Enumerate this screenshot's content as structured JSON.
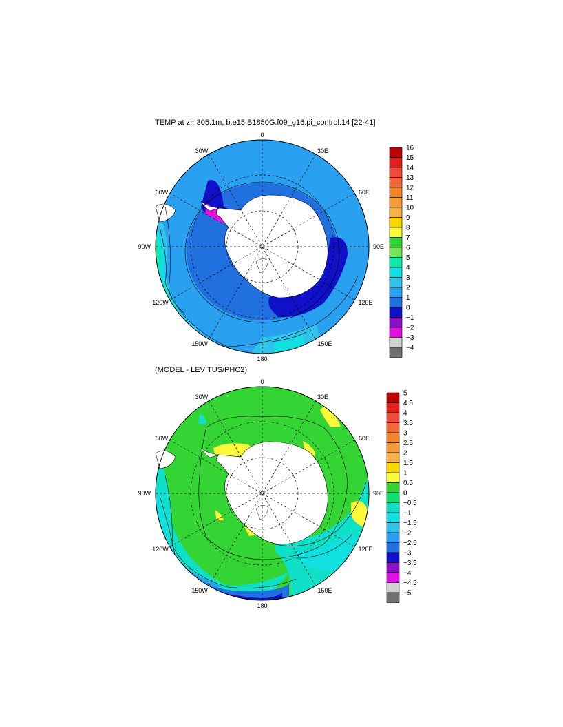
{
  "panel_top": {
    "title": "TEMP at z= 305.1m, b.e15.B1850G.f09_g16.pi_control.14 [22-41]",
    "colorbar": {
      "labels": [
        "16",
        "15",
        "14",
        "13",
        "12",
        "11",
        "10",
        "9",
        "8",
        "7",
        "6",
        "5",
        "4",
        "3",
        "2",
        "1",
        "0",
        "−1",
        "−2",
        "−3",
        "−4"
      ],
      "colors": [
        "#c00000",
        "#e81e1e",
        "#f04a3a",
        "#f06a3a",
        "#f2842a",
        "#f49c38",
        "#f8b24a",
        "#f8d800",
        "#fafa3a",
        "#34d434",
        "#78e45a",
        "#10e8a8",
        "#10e0e0",
        "#30c4ec",
        "#2aa0f0",
        "#2070e0",
        "#1010c8",
        "#8a10c8",
        "#e010e0",
        "#d0d0d0",
        "#707070"
      ]
    }
  },
  "panel_bottom": {
    "title": "(MODEL - LEVITUS/PHC2)",
    "colorbar": {
      "labels": [
        "5",
        "4.5",
        "4",
        "3.5",
        "3",
        "2.5",
        "2",
        "1.5",
        "1",
        "0.5",
        "0",
        "−0.5",
        "−1",
        "−1.5",
        "−2",
        "−2.5",
        "−3",
        "−3.5",
        "−4",
        "−4.5",
        "−5"
      ],
      "colors": [
        "#c00000",
        "#e81e1e",
        "#f04a3a",
        "#f06a3a",
        "#f2842a",
        "#f49c38",
        "#f8b24a",
        "#f8d800",
        "#fafa3a",
        "#34d434",
        "#10e070",
        "#10e0c8",
        "#10e0e0",
        "#30c4ec",
        "#2aa0f0",
        "#2070e0",
        "#1010c8",
        "#8a10c8",
        "#e010e0",
        "#d0d0d0",
        "#707070"
      ]
    }
  },
  "longitude_labels": {
    "top": "0",
    "bottom": "180",
    "left": "90W",
    "right": "90E",
    "ul30": "30W",
    "ul60": "60W",
    "ur30": "30E",
    "ur60": "60E",
    "ll120": "120W",
    "ll150": "150W",
    "lr120": "120E",
    "lr150": "150E"
  },
  "map_colors": {
    "land": "#ffffff",
    "coast": "#000000"
  }
}
